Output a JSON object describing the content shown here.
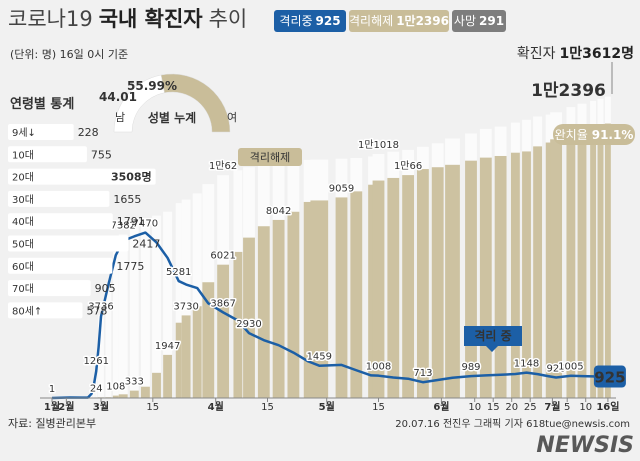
{
  "header": {
    "title": [
      "코로나19",
      "국내 확진자",
      "추이"
    ],
    "badges": [
      {
        "label": "격리중",
        "value": "925"
      },
      {
        "label": "격리해제",
        "value": "1만2396"
      },
      {
        "label": "사망",
        "value": "291"
      }
    ],
    "note": "(단위: 명) 16일 0시 기준",
    "total": "1만3612명",
    "recovery": {
      "label": "완치율",
      "value": "91.1%"
    },
    "source": "자료: 질병관리본부",
    "credit": "20.07.16 전진우 그래픽 기자 618tue@newsis.com",
    "watermark": "NEWSIS"
  },
  "chart_data": [
    {
      "type": "combo",
      "x": [
        20,
        35,
        45,
        50,
        53,
        55,
        57,
        59,
        61,
        63,
        65,
        67,
        70,
        73,
        76,
        79,
        82,
        84,
        87,
        90,
        94,
        98,
        101,
        105,
        109,
        113,
        117,
        120,
        126,
        130,
        134,
        136,
        140,
        144,
        148,
        152,
        156,
        161,
        165,
        169,
        173,
        176,
        179,
        182,
        184,
        188,
        191,
        194,
        196,
        198
      ],
      "xlim": [
        20,
        198
      ],
      "xticks": [
        {
          "value": 20,
          "label": "1월"
        },
        {
          "value": 32,
          "label": "2월"
        },
        {
          "value": 61,
          "label": "3월"
        },
        {
          "value": 75,
          "label": "15"
        },
        {
          "value": 92,
          "label": "4월"
        },
        {
          "value": 106,
          "label": "15"
        },
        {
          "value": 122,
          "label": "5월"
        },
        {
          "value": 136,
          "label": "15"
        },
        {
          "value": 153,
          "label": "6월"
        },
        {
          "value": 162,
          "label": "10"
        },
        {
          "value": 167,
          "label": "15"
        },
        {
          "value": 172,
          "label": "20"
        },
        {
          "value": 177,
          "label": "25"
        },
        {
          "value": 183,
          "label": "7월"
        },
        {
          "value": 187,
          "label": "5"
        },
        {
          "value": 192,
          "label": "10"
        },
        {
          "value": 198,
          "label": "16일"
        }
      ],
      "ylim": [
        0,
        14000
      ],
      "series": [
        {
          "name": "확진자",
          "type": "bar",
          "color": "#fbfbfb",
          "values": [
            1,
            23,
            28,
            31,
            204,
            602,
            1261,
            2337,
            3736,
            5186,
            6593,
            7382,
            7869,
            8086,
            8236,
            8413,
            8799,
            8961,
            9241,
            9661,
            10062,
            10284,
            10423,
            10564,
            10653,
            10702,
            10752,
            10765,
            10806,
            10840,
            10909,
            11018,
            11122,
            11206,
            11344,
            11503,
            11719,
            11947,
            12155,
            12257,
            12438,
            12563,
            12715,
            12800,
            12904,
            13137,
            13293,
            13417,
            13512,
            13612
          ],
          "value_labels": [
            "1",
            null,
            null,
            null,
            null,
            null,
            "1261",
            null,
            "3736",
            null,
            null,
            "7382",
            null,
            null,
            null,
            null,
            null,
            null,
            null,
            null,
            "1만62",
            null,
            null,
            null,
            null,
            null,
            null,
            null,
            null,
            null,
            null,
            "1만1018",
            null,
            null,
            null,
            null,
            null,
            null,
            null,
            null,
            null,
            null,
            null,
            null,
            null,
            null,
            null,
            null,
            null,
            null
          ]
        },
        {
          "name": "격리해제",
          "type": "bar",
          "color": "#cdc2a1",
          "values": [
            0,
            2,
            10,
            12,
            16,
            18,
            24,
            27,
            30,
            34,
            108,
            166,
            333,
            510,
            1137,
            1947,
            3400,
            3730,
            4144,
            5228,
            6021,
            6598,
            7243,
            7757,
            8042,
            8411,
            8854,
            8922,
            9059,
            9332,
            9632,
            9821,
            9938,
            10066,
            10340,
            10422,
            10531,
            10718,
            10856,
            10930,
            11078,
            11135,
            11364,
            11537,
            11684,
            11848,
            12019,
            12147,
            12282,
            12396
          ],
          "value_labels": [
            null,
            null,
            null,
            null,
            null,
            null,
            "24",
            null,
            null,
            null,
            "108",
            null,
            "333",
            null,
            null,
            "1947",
            null,
            "3730",
            null,
            null,
            "6021",
            null,
            null,
            null,
            "8042",
            null,
            null,
            null,
            "9059",
            null,
            null,
            null,
            null,
            "1만66",
            null,
            null,
            null,
            null,
            null,
            null,
            null,
            null,
            null,
            null,
            null,
            null,
            null,
            null,
            null,
            "1만2396"
          ]
        },
        {
          "name": "격리 중",
          "type": "line",
          "color": "#1c5fa6",
          "values": [
            1,
            21,
            18,
            19,
            186,
            578,
            1214,
            2300,
            3680,
            5120,
            6450,
            7100,
            7300,
            7470,
            7024,
            6325,
            5281,
            5125,
            4966,
            4275,
            3867,
            3500,
            2930,
            2613,
            2385,
            2051,
            1654,
            1459,
            1495,
            1253,
            1021,
            1008,
            924,
            872,
            713,
            811,
            915,
            989,
            1021,
            1050,
            1082,
            1148,
            1080,
            984,
            926,
            1005,
            989,
            978,
            943,
            925
          ],
          "value_labels": [
            null,
            null,
            null,
            null,
            null,
            null,
            null,
            null,
            null,
            null,
            null,
            null,
            null,
            "7470",
            null,
            null,
            "5281",
            null,
            null,
            null,
            "3867",
            null,
            "2930",
            null,
            null,
            null,
            null,
            "1459",
            null,
            null,
            null,
            "1008",
            null,
            null,
            "713",
            null,
            null,
            "989",
            null,
            null,
            null,
            "1148",
            null,
            null,
            "926",
            "1005",
            null,
            null,
            null,
            "925"
          ]
        }
      ]
    },
    {
      "type": "pie",
      "title": "성별 누계",
      "categories": [
        "남",
        "여"
      ],
      "values": [
        44.01,
        55.99
      ],
      "value_labels": [
        "44.01",
        "55.99%"
      ],
      "colors": [
        "#ffffff",
        "#c9bd99"
      ]
    },
    {
      "type": "bar",
      "title": "연령별 통계",
      "orientation": "horizontal",
      "color": "#ffffff",
      "categories": [
        "9세↓",
        "10대",
        "20대",
        "30대",
        "40대",
        "50대",
        "60대",
        "70대",
        "80세↑"
      ],
      "values": [
        228,
        755,
        3508,
        1655,
        1791,
        2417,
        1775,
        905,
        578
      ],
      "value_labels": [
        "228",
        "755",
        "3508명",
        "1655",
        "1791",
        "2417",
        "1775",
        "905",
        "578"
      ]
    }
  ]
}
